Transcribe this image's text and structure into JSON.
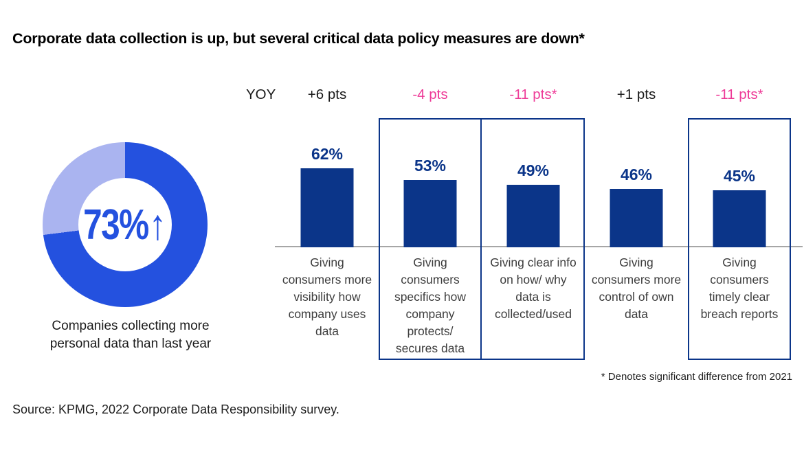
{
  "title": "Corporate data collection is up, but several critical data policy measures are down*",
  "donut": {
    "percent": 73,
    "value_label": "73%",
    "arrow": "↑",
    "caption": "Companies collecting more personal data than last year",
    "colors": {
      "main": "#2451df",
      "remainder": "#aab4f0"
    }
  },
  "chart_data": {
    "type": "bar",
    "yoy_row_label": "YOY",
    "categories": [
      "Giving consumers more visibility how company uses data",
      "Giving consumers specifics how company protects/ secures data",
      "Giving clear info on how/ why data is collected/used",
      "Giving consumers more control of own data",
      "Giving consumers timely clear breach reports"
    ],
    "values": [
      62,
      53,
      49,
      46,
      45
    ],
    "ylim": [
      0,
      100
    ],
    "columns": [
      {
        "value": 62,
        "value_label": "62%",
        "yoy": "+6 pts",
        "yoy_direction": "up",
        "boxed": false,
        "label": "Giving consumers more visibility how company uses data"
      },
      {
        "value": 53,
        "value_label": "53%",
        "yoy": "-4 pts",
        "yoy_direction": "down",
        "boxed": true,
        "label": "Giving consumers specifics how company protects/ secures data"
      },
      {
        "value": 49,
        "value_label": "49%",
        "yoy": "-11 pts*",
        "yoy_direction": "down",
        "boxed": true,
        "label": "Giving clear info on how/ why data is collected/used"
      },
      {
        "value": 46,
        "value_label": "46%",
        "yoy": "+1 pts",
        "yoy_direction": "up",
        "boxed": false,
        "label": "Giving consumers more control of own data"
      },
      {
        "value": 45,
        "value_label": "45%",
        "yoy": "-11 pts*",
        "yoy_direction": "down",
        "boxed": true,
        "label": "Giving consumers timely clear breach reports"
      }
    ],
    "colors": {
      "bar": "#0b3589",
      "box_border": "#0b3589",
      "value_label": "#0b3589",
      "yoy_up": "#1a1a1a",
      "yoy_down": "#ee3a97",
      "baseline": "#a6a6a6",
      "category_text": "#3d3d3d"
    }
  },
  "footnote": "* Denotes significant difference from 2021",
  "source": "Source: KPMG, 2022 Corporate Data Responsibility survey."
}
